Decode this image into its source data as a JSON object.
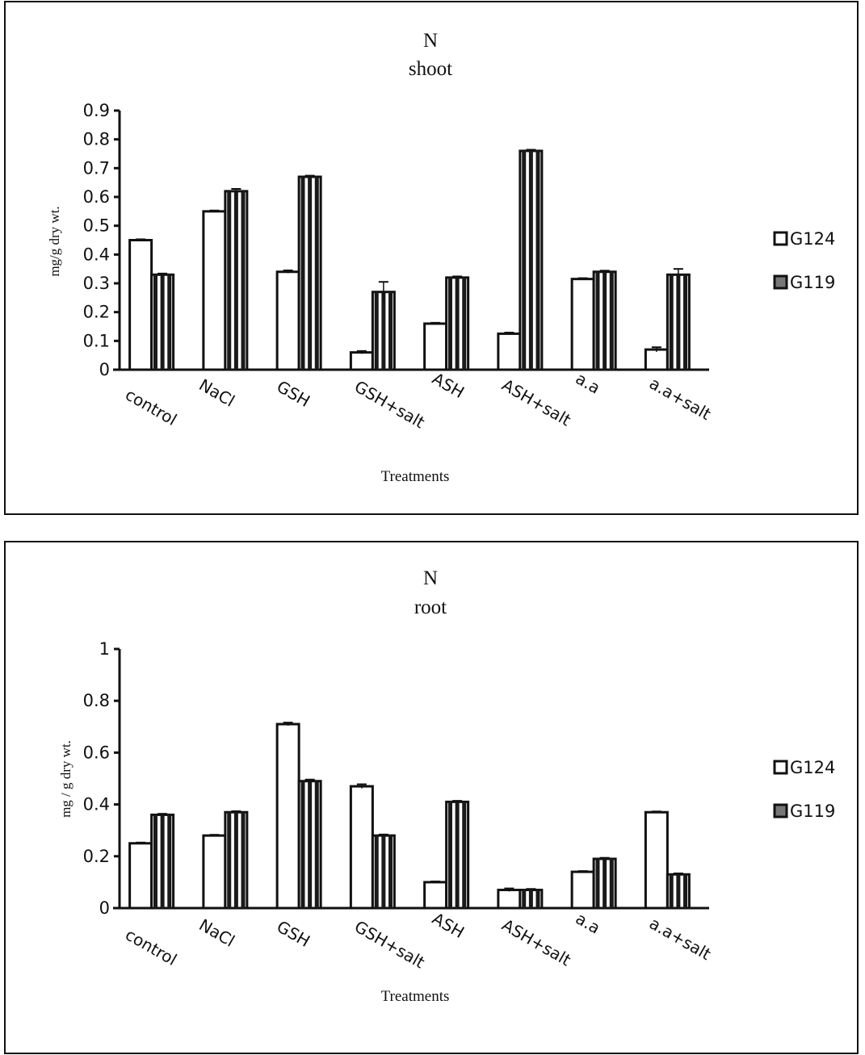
{
  "chart_data": [
    {
      "type": "bar",
      "title": "N",
      "subtitle": "shoot",
      "xlabel": "Treatments",
      "ylabel": "mg/g dry wt.",
      "ylim": [
        0,
        0.9
      ],
      "yticks": [
        "0",
        "0.1",
        "0.2",
        "0.3",
        "0.4",
        "0.5",
        "0.6",
        "0.7",
        "0.8",
        "0.9"
      ],
      "ytick_values": [
        0,
        0.1,
        0.2,
        0.3,
        0.4,
        0.5,
        0.6,
        0.7,
        0.8,
        0.9
      ],
      "categories": [
        "control",
        "NaCl",
        "GSH",
        "GSH+salt",
        "ASH",
        "ASH+salt",
        "a.a",
        "a.a+salt"
      ],
      "series": [
        {
          "name": "G124",
          "pattern": "white",
          "values": [
            0.45,
            0.55,
            0.34,
            0.06,
            0.16,
            0.125,
            0.315,
            0.07
          ],
          "errors": [
            0.003,
            0.003,
            0.005,
            0.005,
            0.003,
            0.004,
            0.003,
            0.008
          ]
        },
        {
          "name": "G119",
          "pattern": "vertical-stripes",
          "values": [
            0.33,
            0.62,
            0.67,
            0.27,
            0.32,
            0.76,
            0.34,
            0.33
          ],
          "errors": [
            0.004,
            0.008,
            0.004,
            0.035,
            0.004,
            0.004,
            0.004,
            0.02
          ]
        }
      ],
      "legend_position": "right",
      "grid": false
    },
    {
      "type": "bar",
      "title": "N",
      "subtitle": "root",
      "xlabel": "Treatments",
      "ylabel": "mg / g dry wt.",
      "ylim": [
        0,
        1
      ],
      "yticks": [
        "0",
        "0.2",
        "0.4",
        "0.6",
        "0.8",
        "1"
      ],
      "ytick_values": [
        0,
        0.2,
        0.4,
        0.6,
        0.8,
        1
      ],
      "categories": [
        "control",
        "NaCl",
        "GSH",
        "GSH+salt",
        "ASH",
        "ASH+salt",
        "a.a",
        "a.a+salt"
      ],
      "series": [
        {
          "name": "G124",
          "pattern": "white",
          "values": [
            0.25,
            0.28,
            0.71,
            0.47,
            0.1,
            0.07,
            0.14,
            0.37
          ],
          "errors": [
            0.003,
            0.003,
            0.006,
            0.008,
            0.003,
            0.006,
            0.003,
            0.003
          ]
        },
        {
          "name": "G119",
          "pattern": "vertical-stripes",
          "values": [
            0.36,
            0.37,
            0.49,
            0.28,
            0.41,
            0.07,
            0.19,
            0.13
          ],
          "errors": [
            0.004,
            0.004,
            0.006,
            0.004,
            0.004,
            0.004,
            0.004,
            0.004
          ]
        }
      ],
      "legend_position": "right",
      "grid": false
    }
  ]
}
